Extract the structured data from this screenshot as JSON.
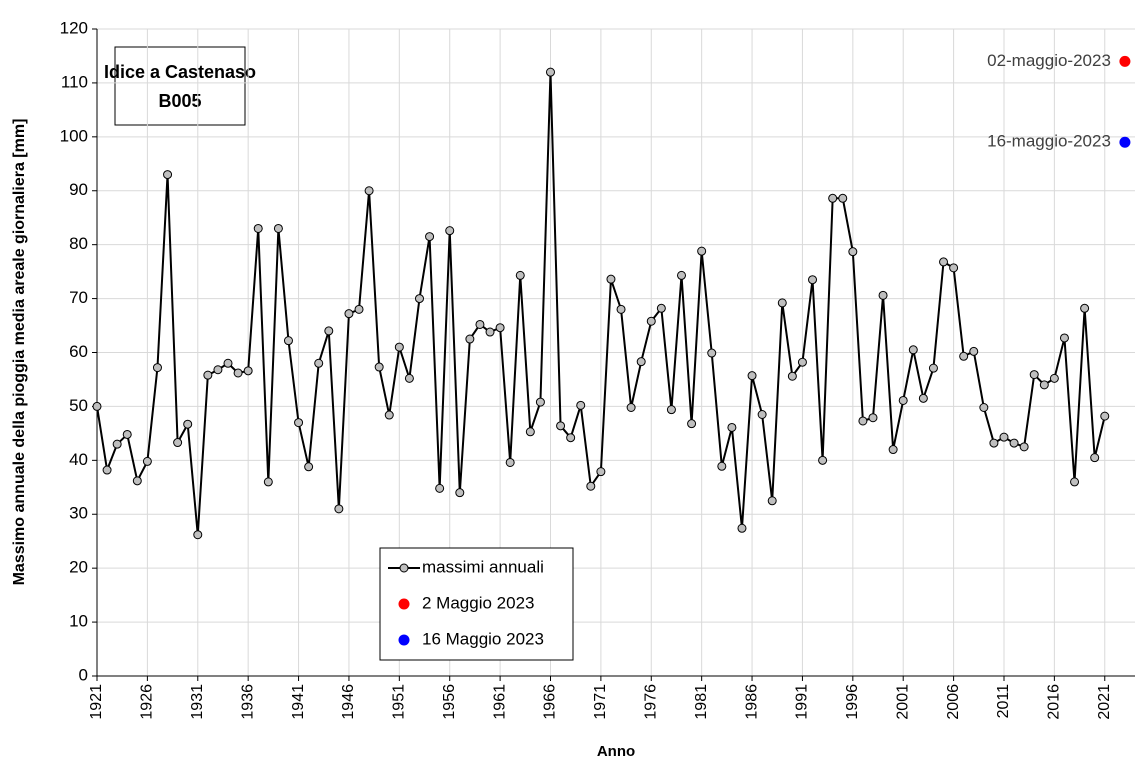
{
  "chart_data": {
    "type": "line",
    "title": "Idice a Castenaso",
    "subtitle": "B005",
    "xlabel": "Anno",
    "ylabel": "Massimo annuale della pioggia media areale giornaliera [mm]",
    "xlim": [
      1921,
      2024
    ],
    "ylim": [
      0,
      120
    ],
    "xticks": [
      1921,
      1926,
      1931,
      1936,
      1941,
      1946,
      1951,
      1956,
      1961,
      1966,
      1971,
      1976,
      1981,
      1986,
      1991,
      1996,
      2001,
      2006,
      2011,
      2016,
      2021
    ],
    "yticks": [
      0,
      10,
      20,
      30,
      40,
      50,
      60,
      70,
      80,
      90,
      100,
      110,
      120
    ],
    "grid": true,
    "legend": "bottom-center",
    "series": [
      {
        "name": "massimi annuali",
        "color": "#000000",
        "marker_color": "#bfbfbf",
        "x": [
          1921,
          1922,
          1923,
          1924,
          1925,
          1926,
          1927,
          1928,
          1929,
          1930,
          1931,
          1932,
          1933,
          1934,
          1935,
          1936,
          1937,
          1938,
          1939,
          1940,
          1941,
          1942,
          1943,
          1944,
          1945,
          1946,
          1947,
          1948,
          1949,
          1950,
          1951,
          1952,
          1953,
          1954,
          1955,
          1956,
          1957,
          1958,
          1959,
          1960,
          1961,
          1962,
          1963,
          1964,
          1965,
          1966,
          1967,
          1968,
          1969,
          1970,
          1971,
          1972,
          1973,
          1974,
          1975,
          1976,
          1977,
          1978,
          1979,
          1980,
          1981,
          1982,
          1983,
          1984,
          1985,
          1986,
          1987,
          1988,
          1989,
          1990,
          1991,
          1992,
          1993,
          1994,
          1995,
          1996,
          1997,
          1998,
          1999,
          2000,
          2001,
          2002,
          2003,
          2004,
          2005,
          2006,
          2007,
          2008,
          2009,
          2010,
          2011,
          2012,
          2013,
          2014,
          2015,
          2016,
          2017,
          2018,
          2019,
          2020,
          2021
        ],
        "values": [
          50,
          38.2,
          43,
          44.8,
          36.2,
          39.8,
          57.2,
          93,
          43.3,
          46.7,
          26.2,
          55.8,
          56.8,
          58,
          56.2,
          56.6,
          83,
          36,
          83,
          62.2,
          47,
          38.8,
          58,
          64,
          31,
          67.2,
          68,
          90,
          57.3,
          48.4,
          61,
          55.2,
          70,
          81.5,
          34.8,
          82.6,
          34,
          62.5,
          65.2,
          63.8,
          64.6,
          39.6,
          74.3,
          45.3,
          50.8,
          112,
          46.4,
          44.2,
          50.2,
          35.2,
          37.9,
          73.6,
          68,
          49.8,
          58.3,
          65.8,
          68.2,
          49.4,
          74.3,
          46.8,
          78.8,
          59.9,
          38.9,
          46.1,
          27.4,
          55.7,
          48.5,
          32.5,
          69.2,
          55.6,
          58.2,
          73.5,
          40,
          88.6,
          88.6,
          78.7,
          47.3,
          47.9,
          70.6,
          42,
          51.1,
          60.5,
          51.5,
          57.1,
          76.8,
          75.7,
          59.3,
          60.2,
          49.8,
          43.2,
          44.3,
          43.2,
          42.5,
          55.9,
          54,
          55.2,
          62.7,
          36,
          68.2,
          40.5,
          48.2
        ]
      },
      {
        "name": "2 Maggio 2023",
        "color": "#ff0000",
        "x": [
          2023
        ],
        "values": [
          114
        ],
        "label": "02-maggio-2023"
      },
      {
        "name": "16 Maggio 2023",
        "color": "#0000ff",
        "x": [
          2023
        ],
        "values": [
          99
        ],
        "label": "16-maggio-2023"
      }
    ]
  }
}
